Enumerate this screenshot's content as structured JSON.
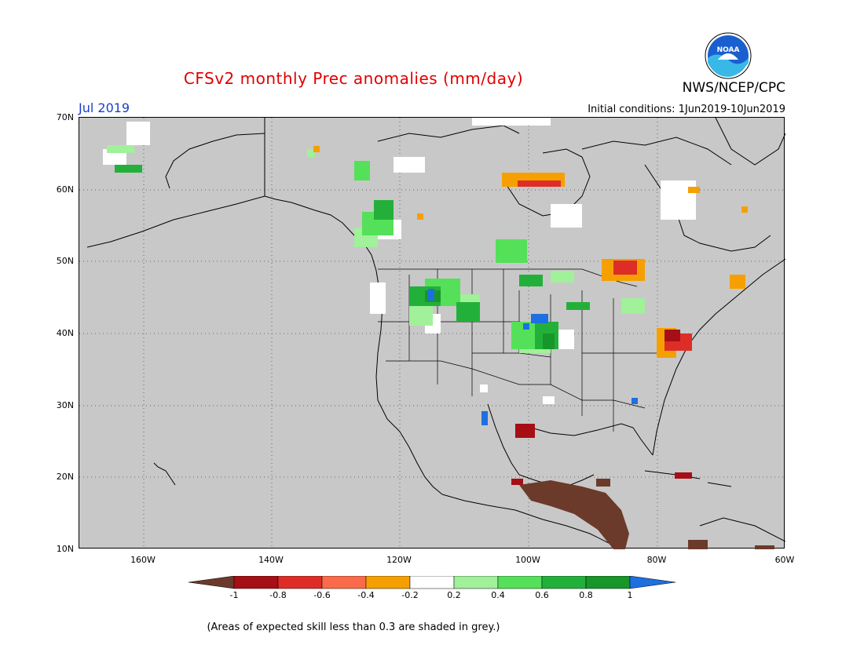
{
  "title": "CFSv2 monthly Prec anomalies (mm/day)",
  "org": "NWS/NCEP/CPC",
  "logo_text": "NOAA",
  "month_label": "Jul 2019",
  "initial_conditions": "Initial conditions: 1Jun2019-10Jun2019",
  "note": "(Areas of expected skill less than 0.3 are shaded in grey.)",
  "lat_labels": [
    "70N",
    "60N",
    "50N",
    "40N",
    "30N",
    "20N",
    "10N"
  ],
  "lon_labels": [
    "160W",
    "140W",
    "120W",
    "100W",
    "80W",
    "60W"
  ],
  "map_extent": {
    "lon_min": -172,
    "lon_max": -62,
    "lat_min": 10,
    "lat_max": 70
  },
  "colorbar": {
    "labels": [
      "-1",
      "-0.8",
      "-0.6",
      "-0.4",
      "-0.2",
      "0.2",
      "0.4",
      "0.6",
      "0.8",
      "1"
    ],
    "colors": [
      "#6b3a2a",
      "#a50f15",
      "#de2d26",
      "#fb6a4a",
      "#f5a000",
      "#ffffff",
      "#a1f09a",
      "#55e05a",
      "#23b03a",
      "#17962a",
      "#1e6fe0"
    ]
  },
  "anomaly_regions": [
    {
      "name": "Mexico/Central America",
      "color": "#6b3a2a",
      "value": "< -1"
    },
    {
      "name": "Mid-Atlantic",
      "color": "#de2d26",
      "value": "-0.6 to -0.8"
    },
    {
      "name": "Hudson Bay",
      "color": "#de2d26",
      "value": "-0.6"
    },
    {
      "name": "Great Lakes north",
      "color": "#fb6a4a",
      "value": "-0.6 to -0.4"
    },
    {
      "name": "Northern Rockies/Plains",
      "color": "#23b03a",
      "value": "0.4 to 0.8"
    },
    {
      "name": "Central Plains",
      "color": "#23b03a",
      "value": "0.4 to 1"
    },
    {
      "name": "Western Canada",
      "color": "#55e05a",
      "value": "0.2 to 0.6"
    }
  ]
}
